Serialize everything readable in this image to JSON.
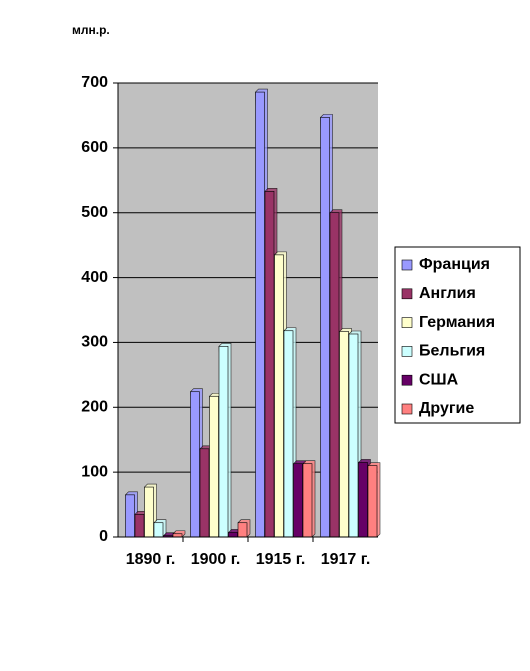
{
  "chart_data": {
    "type": "bar",
    "y_label": "млн.р.",
    "categories": [
      "1890 г.",
      "1900 г.",
      "1915 г.",
      "1917 г."
    ],
    "series": [
      {
        "name": "Франция",
        "color": "#9999ff",
        "values": [
          65,
          224,
          686,
          647
        ]
      },
      {
        "name": "Англия",
        "color": "#993366",
        "values": [
          35,
          136,
          533,
          500
        ]
      },
      {
        "name": "Германия",
        "color": "#ffffcc",
        "values": [
          77,
          217,
          435,
          317
        ]
      },
      {
        "name": "Бельгия",
        "color": "#ccffff",
        "values": [
          22,
          294,
          318,
          313
        ]
      },
      {
        "name": "США",
        "color": "#660066",
        "values": [
          2,
          7,
          113,
          115
        ]
      },
      {
        "name": "Другие",
        "color": "#ff8080",
        "values": [
          5,
          22,
          113,
          110
        ]
      }
    ],
    "ylim": [
      0,
      700
    ],
    "yticks": [
      0,
      100,
      200,
      300,
      400,
      500,
      600,
      700
    ],
    "grid": true,
    "legend": "right"
  }
}
